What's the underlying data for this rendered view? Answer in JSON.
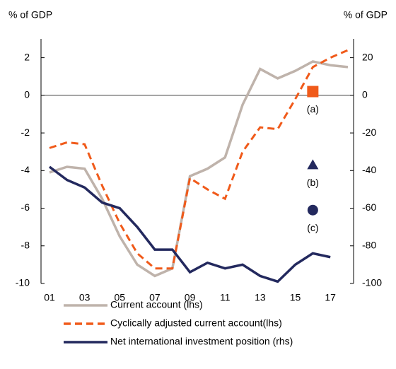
{
  "chart_data": {
    "type": "line",
    "y_label": "% of GDP",
    "y2_label": "% of GDP",
    "categories": [
      "01",
      null,
      "03",
      null,
      "05",
      null,
      "07",
      null,
      "09",
      null,
      "11",
      null,
      "13",
      null,
      "15",
      null,
      "17",
      null
    ],
    "series": [
      {
        "name": "Current account (lhs)",
        "color": "#bfb3ab",
        "dash": false,
        "axis": "y",
        "values": [
          -4.1,
          -3.8,
          -3.9,
          -5.5,
          -7.5,
          -9.0,
          -9.6,
          -9.2,
          -4.3,
          -3.9,
          -3.3,
          -0.5,
          1.4,
          0.9,
          1.3,
          1.8,
          1.6,
          1.5
        ]
      },
      {
        "name": "Cyclically adjusted current account(lhs)",
        "color": "#f05a1a",
        "dash": true,
        "axis": "y",
        "values": [
          -2.8,
          -2.5,
          -2.6,
          -4.8,
          -6.8,
          -8.4,
          -9.2,
          -9.2,
          -4.4,
          -5.0,
          -5.5,
          -3.0,
          -1.7,
          -1.8,
          -0.2,
          1.5,
          2.0,
          2.4
        ]
      },
      {
        "name": "Net international investment position (rhs)",
        "color": "#23295e",
        "dash": false,
        "axis": "y2",
        "values": [
          -38,
          -45,
          -49,
          -57,
          -60,
          -70,
          -82,
          -82,
          -94,
          -89,
          -92,
          -90,
          -96,
          -99,
          -90,
          -84,
          -86,
          null
        ]
      }
    ],
    "markers": [
      {
        "label": "(a)",
        "shape": "square",
        "color": "#f05a1a",
        "values": [
          null,
          null,
          null,
          null,
          null,
          null,
          null,
          null,
          null,
          null,
          null,
          null,
          null,
          null,
          null,
          0.2,
          null,
          null
        ]
      },
      {
        "label": "(b)",
        "shape": "triangle",
        "color": "#23295e",
        "values": [
          null,
          null,
          null,
          null,
          null,
          null,
          null,
          null,
          null,
          null,
          null,
          null,
          null,
          null,
          null,
          -3.7,
          null,
          null
        ]
      },
      {
        "label": "(c)",
        "shape": "circle",
        "color": "#23295e",
        "values": [
          null,
          null,
          null,
          null,
          null,
          null,
          null,
          null,
          null,
          null,
          null,
          null,
          null,
          null,
          null,
          -6.1,
          null,
          null
        ]
      }
    ],
    "ylim": [
      -10,
      3
    ],
    "yticks": [
      -10,
      -8,
      -6,
      -4,
      -2,
      0,
      2
    ],
    "y2lim": [
      -100,
      30
    ],
    "y2ticks": [
      -100,
      -80,
      -60,
      -40,
      -20,
      0,
      20
    ]
  }
}
